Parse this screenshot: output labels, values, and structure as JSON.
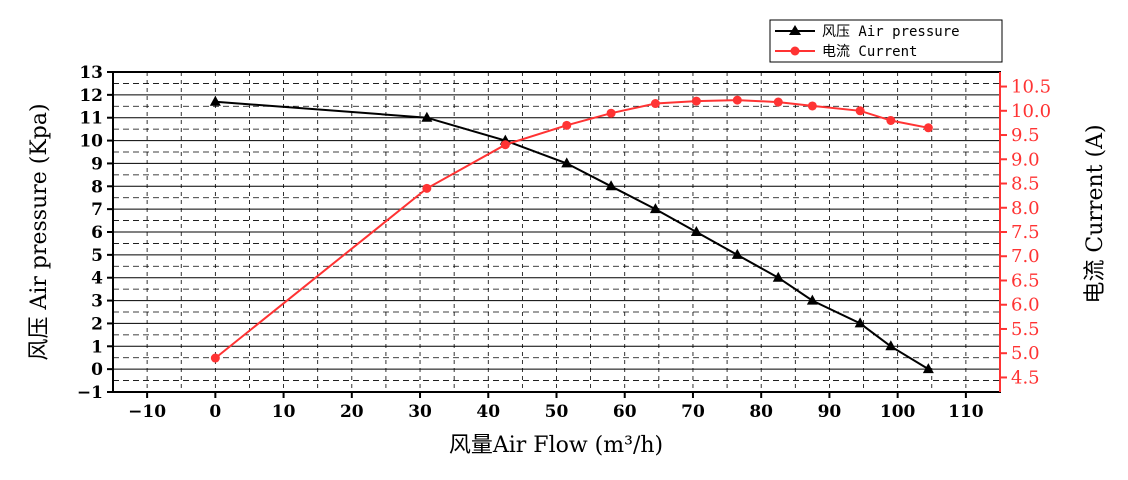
{
  "chart_data": {
    "type": "line",
    "xlabel": "风量Air Flow (m³/h)",
    "ylabel_left": "风压 Air pressure (Kpa)",
    "ylabel_right": "电流 Current (A)",
    "xlim": [
      -15,
      115
    ],
    "ylim_left": [
      -1,
      13
    ],
    "ylim_right": [
      4.2,
      10.8
    ],
    "x_ticks": [
      -10,
      0,
      10,
      20,
      30,
      40,
      50,
      60,
      70,
      80,
      90,
      100,
      110
    ],
    "x_tick_labels": [
      "−10",
      "0",
      "10",
      "20",
      "30",
      "40",
      "50",
      "60",
      "70",
      "80",
      "90",
      "100",
      "110"
    ],
    "y_left_ticks": [
      -1,
      0,
      1,
      2,
      3,
      4,
      5,
      6,
      7,
      8,
      9,
      10,
      11,
      12,
      13
    ],
    "y_left_tick_labels": [
      "−1",
      "0",
      "1",
      "2",
      "3",
      "4",
      "5",
      "6",
      "7",
      "8",
      "9",
      "10",
      "11",
      "12",
      "13"
    ],
    "y_right_ticks": [
      4.5,
      5.0,
      5.5,
      6.0,
      6.5,
      7.0,
      7.5,
      8.0,
      8.5,
      9.0,
      9.5,
      10.0,
      10.5
    ],
    "y_right_tick_labels": [
      "4.5",
      "5.0",
      "5.5",
      "6.0",
      "6.5",
      "7.0",
      "7.5",
      "8.0",
      "8.5",
      "9.0",
      "9.5",
      "10.0",
      "10.5"
    ],
    "grid": true,
    "legend_position": "top-right",
    "series": [
      {
        "name": "风压 Air pressure",
        "axis": "left",
        "color": "#000000",
        "marker": "triangle",
        "x": [
          0,
          31,
          42.5,
          51.5,
          58,
          64.5,
          70.5,
          76.5,
          82.5,
          87.5,
          94.5,
          99,
          104.5
        ],
        "values": [
          11.7,
          11.0,
          10.0,
          9.0,
          8.0,
          7.0,
          6.0,
          5.0,
          4.0,
          3.0,
          2.0,
          1.0,
          0.0
        ]
      },
      {
        "name": "电流 Current",
        "axis": "right",
        "color": "#ff3333",
        "marker": "circle",
        "x": [
          0,
          31,
          42.5,
          51.5,
          58,
          64.5,
          70.5,
          76.5,
          82.5,
          87.5,
          94.5,
          99,
          104.5
        ],
        "values": [
          4.9,
          8.4,
          9.3,
          9.7,
          9.95,
          10.15,
          10.2,
          10.22,
          10.18,
          10.1,
          10.0,
          9.8,
          9.65
        ]
      }
    ]
  }
}
